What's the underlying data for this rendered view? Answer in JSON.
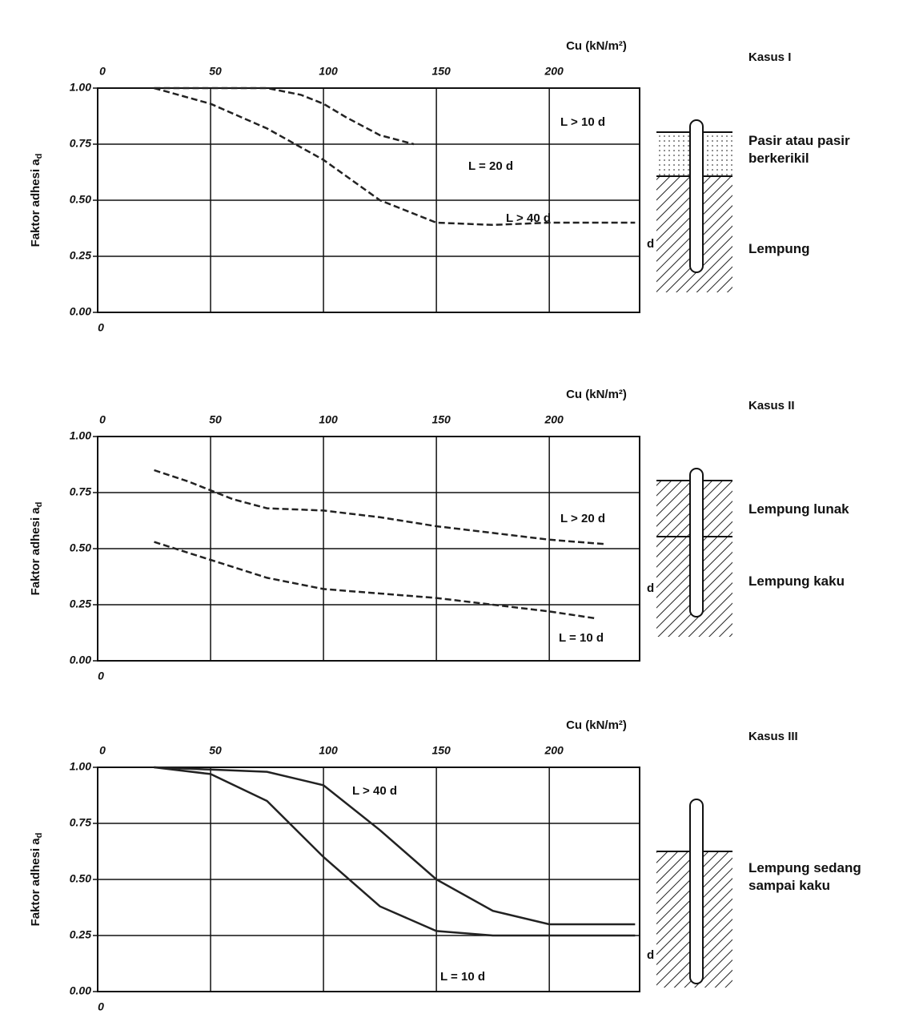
{
  "chart_data": [
    {
      "type": "line",
      "title": "Kasus I",
      "xlabel": "Cu (kN/m²)",
      "ylabel": "Faktor adhesi a",
      "ylabel_subscript": "d",
      "x_origin_label": "0",
      "xlim": [
        0,
        240
      ],
      "ylim": [
        0,
        1
      ],
      "xticks": [
        0,
        50,
        100,
        150,
        200
      ],
      "yticks": [
        {
          "value": 0,
          "label": "0.00"
        },
        {
          "value": 0.25,
          "label": "0.25"
        },
        {
          "value": 0.5,
          "label": "0.50"
        },
        {
          "value": 0.75,
          "label": "0.75"
        },
        {
          "value": 1,
          "label": "1.00"
        }
      ],
      "grid": true,
      "dashed": true,
      "color": "#222",
      "annotations": [
        "L > 10 d"
      ],
      "layers": [
        "Pasir atau pasir berkerikil",
        "Lempung"
      ],
      "d_label": "d",
      "series": [
        {
          "name": "L = 20 d",
          "x": [
            25,
            50,
            75,
            90,
            100,
            110,
            125,
            140
          ],
          "values": [
            1,
            1,
            1,
            0.97,
            0.93,
            0.87,
            0.79,
            0.75
          ]
        },
        {
          "name": "L > 40 d",
          "x": [
            25,
            50,
            75,
            100,
            125,
            150,
            175,
            200,
            225,
            238
          ],
          "values": [
            1,
            0.93,
            0.82,
            0.68,
            0.5,
            0.4,
            0.39,
            0.4,
            0.4,
            0.4
          ]
        }
      ]
    },
    {
      "type": "line",
      "title": "Kasus II",
      "xlabel": "Cu (kN/m²)",
      "ylabel": "Faktor adhesi a",
      "ylabel_subscript": "d",
      "x_origin_label": "0",
      "xlim": [
        0,
        240
      ],
      "ylim": [
        0,
        1
      ],
      "xticks": [
        0,
        50,
        100,
        150,
        200
      ],
      "yticks": [
        {
          "value": 0,
          "label": "0.00"
        },
        {
          "value": 0.25,
          "label": "0.25"
        },
        {
          "value": 0.5,
          "label": "0.50"
        },
        {
          "value": 0.75,
          "label": "0.75"
        },
        {
          "value": 1,
          "label": "1.00"
        }
      ],
      "grid": true,
      "dashed": true,
      "color": "#222",
      "annotations": [],
      "layers": [
        "Lempung lunak",
        "Lempung kaku"
      ],
      "d_label": "d",
      "series": [
        {
          "name": "L > 20 d",
          "x": [
            25,
            40,
            50,
            60,
            75,
            100,
            125,
            150,
            175,
            200,
            225
          ],
          "values": [
            0.85,
            0.8,
            0.76,
            0.72,
            0.68,
            0.67,
            0.64,
            0.6,
            0.57,
            0.54,
            0.52
          ]
        },
        {
          "name": "L = 10 d",
          "x": [
            25,
            50,
            75,
            100,
            125,
            150,
            175,
            200,
            220
          ],
          "values": [
            0.53,
            0.45,
            0.37,
            0.32,
            0.3,
            0.28,
            0.25,
            0.22,
            0.19
          ]
        }
      ]
    },
    {
      "type": "line",
      "title": "Kasus III",
      "xlabel": "Cu (kN/m²)",
      "ylabel": "Faktor adhesi a",
      "ylabel_subscript": "d",
      "x_origin_label": "0",
      "xlim": [
        0,
        240
      ],
      "ylim": [
        0,
        1
      ],
      "xticks": [
        0,
        50,
        100,
        150,
        200
      ],
      "yticks": [
        {
          "value": 0,
          "label": "0.00"
        },
        {
          "value": 0.25,
          "label": "0.25"
        },
        {
          "value": 0.5,
          "label": "0.50"
        },
        {
          "value": 0.75,
          "label": "0.75"
        },
        {
          "value": 1,
          "label": "1.00"
        }
      ],
      "grid": true,
      "dashed": false,
      "color": "#222",
      "annotations": [],
      "layers": [
        "Lempung sedang sampai kaku"
      ],
      "d_label": "d",
      "series": [
        {
          "name": "L > 40 d",
          "x": [
            25,
            50,
            75,
            100,
            125,
            150,
            175,
            200,
            238
          ],
          "values": [
            1,
            0.99,
            0.98,
            0.92,
            0.72,
            0.5,
            0.36,
            0.3,
            0.3
          ]
        },
        {
          "name": "L = 10 d",
          "x": [
            25,
            50,
            75,
            100,
            125,
            150,
            175,
            238
          ],
          "values": [
            1,
            0.97,
            0.85,
            0.6,
            0.38,
            0.27,
            0.25,
            0.25
          ]
        }
      ]
    }
  ]
}
